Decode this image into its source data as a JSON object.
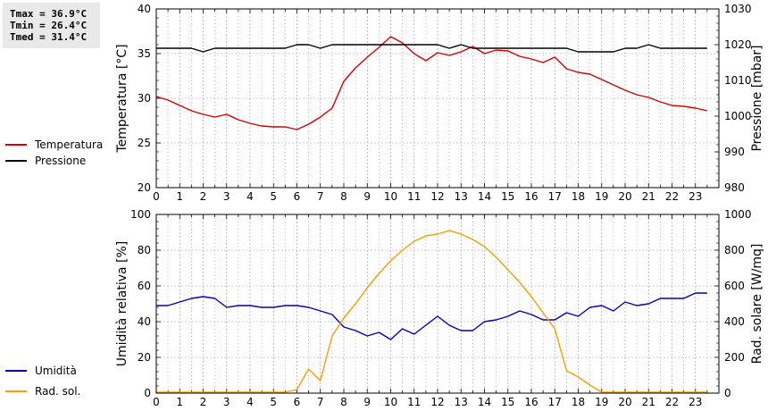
{
  "stats": {
    "tmax": "Tmax = 36.9°C",
    "tmin": "Tmin = 26.4°C",
    "tmed": "Tmed = 31.4°C"
  },
  "colors": {
    "temperature": "#d40000",
    "pressure": "#000000",
    "humidity": "#0000b4",
    "radiation": "#f0a000",
    "grid": "#999999",
    "stats_bg": "#e9e9e9"
  },
  "chart_data": [
    {
      "type": "line",
      "ylabel": "Temperatura [°C]",
      "ylabel_right": "Pressione [mbar]",
      "xlim": [
        0,
        24
      ],
      "xticks": [
        "0",
        "1",
        "2",
        "3",
        "4",
        "5",
        "6",
        "7",
        "8",
        "9",
        "10",
        "11",
        "12",
        "13",
        "14",
        "15",
        "16",
        "17",
        "18",
        "19",
        "20",
        "21",
        "22",
        "23"
      ],
      "ylim": [
        20,
        40
      ],
      "yticks": [
        "20",
        "25",
        "30",
        "35",
        "40"
      ],
      "ylim_right": [
        980,
        1030
      ],
      "yticks_right": [
        "980",
        "990",
        "1000",
        "1010",
        "1020",
        "1030"
      ],
      "grid": true,
      "legend_position": "left",
      "series": [
        {
          "name": "Temperatura",
          "axis": "left",
          "x": [
            0,
            0.5,
            1,
            1.5,
            2,
            2.5,
            3,
            3.5,
            4,
            4.5,
            5,
            5.5,
            6,
            6.5,
            7,
            7.5,
            8,
            8.5,
            9,
            9.5,
            10,
            10.5,
            11,
            11.5,
            12,
            12.5,
            13,
            13.5,
            14,
            14.5,
            15,
            15.5,
            16,
            16.5,
            17,
            17.5,
            18,
            18.5,
            19,
            19.5,
            20,
            20.5,
            21,
            21.5,
            22,
            22.5,
            23,
            23.5
          ],
          "y": [
            30.2,
            29.8,
            29.2,
            28.6,
            28.2,
            27.9,
            28.2,
            27.6,
            27.2,
            26.9,
            26.8,
            26.8,
            26.5,
            27.1,
            27.9,
            28.9,
            31.9,
            33.4,
            34.6,
            35.7,
            36.9,
            36.2,
            35.0,
            34.2,
            35.1,
            34.8,
            35.2,
            35.8,
            35.0,
            35.4,
            35.3,
            34.7,
            34.4,
            34.0,
            34.6,
            33.3,
            32.9,
            32.7,
            32.1,
            31.5,
            30.9,
            30.4,
            30.1,
            29.6,
            29.2,
            29.1,
            28.9,
            28.6
          ]
        },
        {
          "name": "Pressione",
          "axis": "right",
          "x": [
            0,
            0.5,
            1,
            1.5,
            2,
            2.5,
            3,
            3.5,
            4,
            4.5,
            5,
            5.5,
            6,
            6.5,
            7,
            7.5,
            8,
            8.5,
            9,
            9.5,
            10,
            10.5,
            11,
            11.5,
            12,
            12.5,
            13,
            13.5,
            14,
            14.5,
            15,
            15.5,
            16,
            16.5,
            17,
            17.5,
            18,
            18.5,
            19,
            19.5,
            20,
            20.5,
            21,
            21.5,
            22,
            22.5,
            23,
            23.5
          ],
          "y": [
            1019,
            1019,
            1019,
            1019,
            1018,
            1019,
            1019,
            1019,
            1019,
            1019,
            1019,
            1019,
            1020,
            1020,
            1019,
            1020,
            1020,
            1020,
            1020,
            1020,
            1020,
            1020,
            1020,
            1020,
            1020,
            1019,
            1020,
            1019,
            1019,
            1019,
            1019,
            1019,
            1019,
            1019,
            1019,
            1019,
            1018,
            1018,
            1018,
            1018,
            1019,
            1019,
            1020,
            1019,
            1019,
            1019,
            1019,
            1019
          ]
        }
      ]
    },
    {
      "type": "line",
      "ylabel": "Umidità relativa [%]",
      "ylabel_right": "Rad. solare [W/mq]",
      "xlim": [
        0,
        24
      ],
      "xticks": [
        "0",
        "1",
        "2",
        "3",
        "4",
        "5",
        "6",
        "7",
        "8",
        "9",
        "10",
        "11",
        "12",
        "13",
        "14",
        "15",
        "16",
        "17",
        "18",
        "19",
        "20",
        "21",
        "22",
        "23"
      ],
      "ylim": [
        0,
        100
      ],
      "yticks": [
        "0",
        "20",
        "40",
        "60",
        "80",
        "100"
      ],
      "ylim_right": [
        0,
        1000
      ],
      "yticks_right": [
        "0",
        "200",
        "400",
        "600",
        "800",
        "1000"
      ],
      "grid": true,
      "legend_position": "left",
      "series": [
        {
          "name": "Umidità",
          "axis": "left",
          "x": [
            0,
            0.5,
            1,
            1.5,
            2,
            2.5,
            3,
            3.5,
            4,
            4.5,
            5,
            5.5,
            6,
            6.5,
            7,
            7.5,
            8,
            8.5,
            9,
            9.5,
            10,
            10.5,
            11,
            11.5,
            12,
            12.5,
            13,
            13.5,
            14,
            14.5,
            15,
            15.5,
            16,
            16.5,
            17,
            17.5,
            18,
            18.5,
            19,
            19.5,
            20,
            20.5,
            21,
            21.5,
            22,
            22.5,
            23,
            23.5
          ],
          "y": [
            49,
            49,
            51,
            53,
            54,
            53,
            48,
            49,
            49,
            48,
            48,
            49,
            49,
            48,
            46,
            44,
            37,
            35,
            32,
            34,
            30,
            36,
            33,
            38,
            43,
            38,
            35,
            35,
            40,
            41,
            43,
            46,
            44,
            41,
            41,
            45,
            43,
            48,
            49,
            46,
            51,
            49,
            50,
            53,
            53,
            53,
            56,
            56
          ]
        },
        {
          "name": "Rad. sol.",
          "axis": "right",
          "x": [
            0,
            0.5,
            1,
            1.5,
            2,
            2.5,
            3,
            3.5,
            4,
            4.5,
            5,
            5.5,
            6,
            6.5,
            7,
            7.5,
            8,
            8.5,
            9,
            9.5,
            10,
            10.5,
            11,
            11.5,
            12,
            12.5,
            13,
            13.5,
            14,
            14.5,
            15,
            15.5,
            16,
            16.5,
            17,
            17.5,
            18,
            18.5,
            19,
            19.5,
            20,
            20.5,
            21,
            21.5,
            22,
            22.5,
            23,
            23.5
          ],
          "y": [
            5,
            5,
            5,
            5,
            5,
            5,
            5,
            5,
            5,
            5,
            5,
            5,
            20,
            135,
            70,
            320,
            420,
            500,
            590,
            670,
            740,
            800,
            850,
            880,
            890,
            910,
            890,
            860,
            820,
            760,
            690,
            620,
            540,
            450,
            360,
            125,
            90,
            45,
            5,
            5,
            5,
            5,
            5,
            5,
            5,
            5,
            5,
            5
          ]
        }
      ]
    }
  ]
}
